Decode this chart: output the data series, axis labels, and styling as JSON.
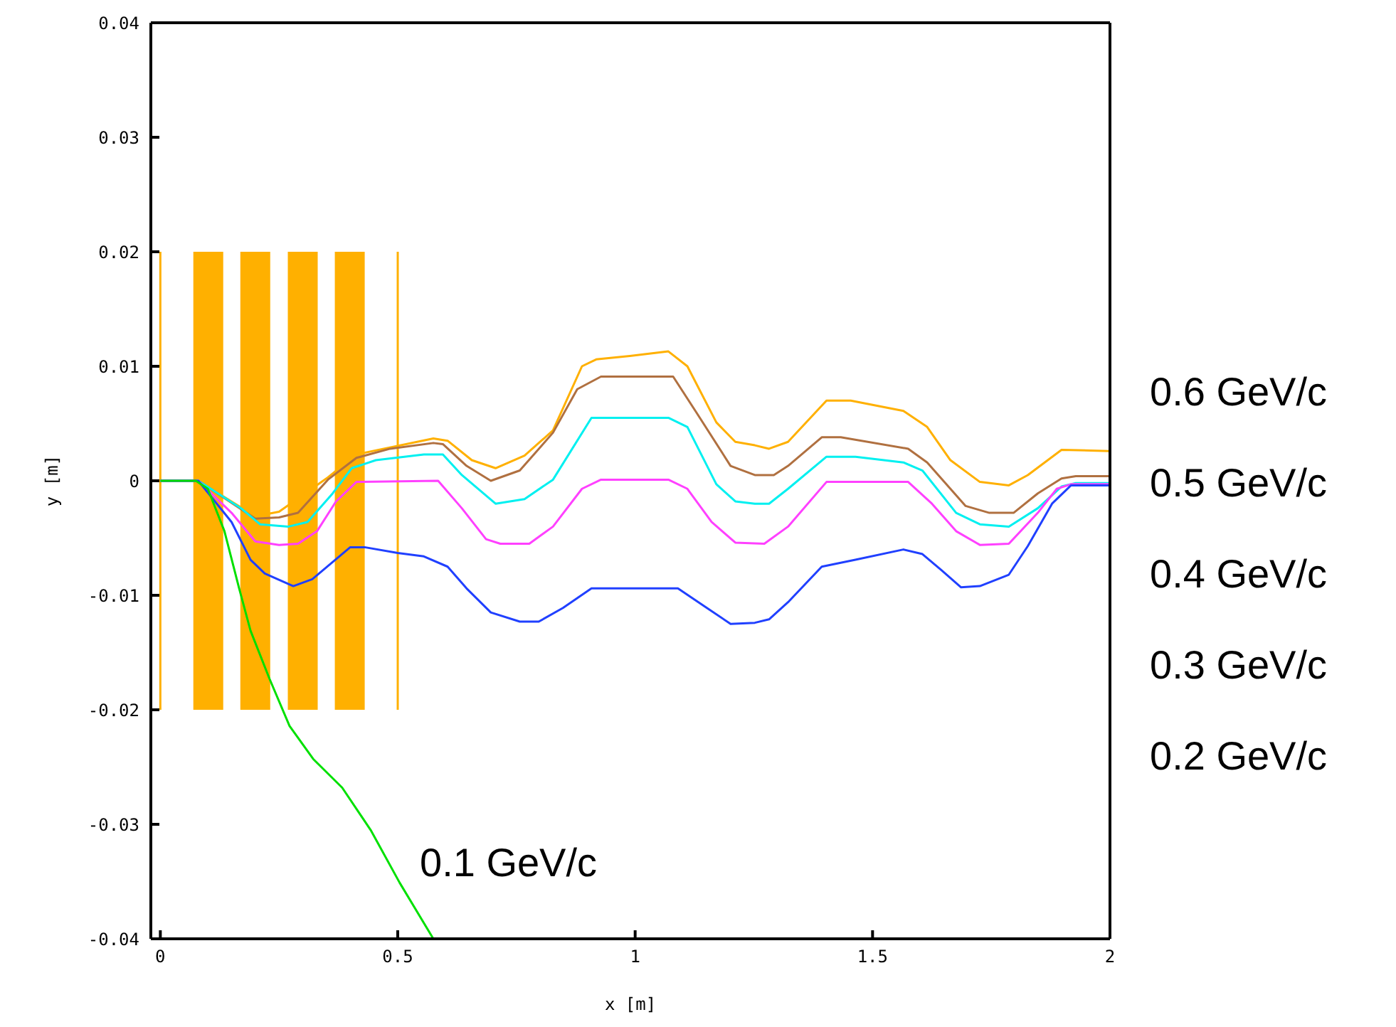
{
  "chart_data": {
    "type": "line",
    "xlabel": "x [m]",
    "ylabel": "y [m]",
    "xlim": [
      -0.02,
      2
    ],
    "xticks": [
      0,
      0.5,
      1,
      1.5,
      2
    ],
    "ylim": [
      -0.04,
      0.04
    ],
    "yticks": [
      -0.04,
      -0.03,
      -0.02,
      -0.01,
      0,
      0.01,
      0.02,
      0.03,
      0.04
    ],
    "grid": false,
    "legend": "right",
    "marker": "none",
    "line_style": "solid",
    "annotations": [
      "0.1 GeV/c"
    ],
    "series": [
      {
        "type": "bar",
        "color": "#ffb000",
        "x": [
          0.101,
          0.2,
          0.3,
          0.399
        ],
        "base": [
          -0.02,
          -0.02,
          -0.02,
          -0.02
        ],
        "values": [
          0.04,
          0.04,
          0.04,
          0.04
        ]
      },
      {
        "type": "line",
        "color": "#ffb000",
        "x": [
          0,
          0
        ],
        "values": [
          -0.02,
          0.02
        ]
      },
      {
        "type": "line",
        "color": "#ffb000",
        "x": [
          0.5,
          0.5
        ],
        "values": [
          -0.02,
          0.02
        ]
      },
      {
        "name": "0.6 GeV/c",
        "color": "#ffb000",
        "x": [
          0,
          0.08,
          0.2,
          0.25,
          0.353,
          0.413,
          0.575,
          0.605,
          0.656,
          0.706,
          0.767,
          0.827,
          0.888,
          0.918,
          0.989,
          1.07,
          1.11,
          1.171,
          1.211,
          1.252,
          1.282,
          1.322,
          1.403,
          1.454,
          1.565,
          1.615,
          1.664,
          1.726,
          1.787,
          1.827,
          1.898,
          2.0
        ],
        "values": [
          0,
          0,
          -0.0031,
          -0.0027,
          0.0003,
          0.0023,
          0.0037,
          0.0035,
          0.0018,
          0.0011,
          0.0022,
          0.0044,
          0.01,
          0.0106,
          0.0109,
          0.0113,
          0.01,
          0.0051,
          0.0034,
          0.0031,
          0.0028,
          0.0034,
          0.007,
          0.007,
          0.0061,
          0.0047,
          0.0018,
          -0.0001,
          -0.0004,
          0.0005,
          0.0027,
          0.0026
        ]
      },
      {
        "name": "0.5 GeV/c",
        "color": "#b07040",
        "x": [
          0,
          0.08,
          0.2,
          0.25,
          0.29,
          0.353,
          0.413,
          0.484,
          0.575,
          0.595,
          0.645,
          0.696,
          0.757,
          0.827,
          0.878,
          0.928,
          1.08,
          1.13,
          1.201,
          1.252,
          1.292,
          1.322,
          1.393,
          1.433,
          1.575,
          1.615,
          1.696,
          1.746,
          1.797,
          1.848,
          1.898,
          1.928,
          2.0
        ],
        "values": [
          0,
          0,
          -0.0033,
          -0.0032,
          -0.0028,
          0.0001,
          0.002,
          0.0028,
          0.0033,
          0.0032,
          0.0013,
          0,
          0.0009,
          0.0042,
          0.008,
          0.0091,
          0.0091,
          0.0059,
          0.0013,
          0.0005,
          0.0005,
          0.0013,
          0.0038,
          0.0038,
          0.0028,
          0.0016,
          -0.0022,
          -0.0028,
          -0.0028,
          -0.0011,
          0.0002,
          0.0004,
          0.0004
        ]
      },
      {
        "name": "0.4 GeV/c",
        "color": "#00f0f0",
        "x": [
          0,
          0.08,
          0.17,
          0.21,
          0.27,
          0.31,
          0.363,
          0.403,
          0.454,
          0.555,
          0.595,
          0.635,
          0.706,
          0.767,
          0.827,
          0.908,
          1.07,
          1.11,
          1.171,
          1.211,
          1.252,
          1.282,
          1.322,
          1.403,
          1.464,
          1.565,
          1.605,
          1.676,
          1.726,
          1.787,
          1.848,
          1.898,
          1.928,
          2.0
        ],
        "values": [
          0,
          0,
          -0.0024,
          -0.0038,
          -0.004,
          -0.0036,
          -0.0011,
          0.0011,
          0.0018,
          0.0023,
          0.0023,
          0.0005,
          -0.002,
          -0.0016,
          0.0001,
          0.0055,
          0.0055,
          0.0047,
          -0.0003,
          -0.0018,
          -0.002,
          -0.002,
          -0.0007,
          0.0021,
          0.0021,
          0.0016,
          0.0009,
          -0.0028,
          -0.0038,
          -0.004,
          -0.0024,
          -0.0005,
          -0.0002,
          -0.0002
        ]
      },
      {
        "name": "0.3 GeV/c",
        "color": "#ff40ff",
        "x": [
          0,
          0.08,
          0.15,
          0.2,
          0.25,
          0.29,
          0.33,
          0.37,
          0.413,
          0.585,
          0.635,
          0.686,
          0.716,
          0.777,
          0.827,
          0.888,
          0.928,
          1.07,
          1.11,
          1.161,
          1.211,
          1.272,
          1.322,
          1.403,
          1.575,
          1.625,
          1.676,
          1.726,
          1.787,
          1.848,
          1.888,
          1.918,
          2.0
        ],
        "values": [
          0,
          0,
          -0.0028,
          -0.0053,
          -0.0056,
          -0.0055,
          -0.0044,
          -0.0018,
          -0.0001,
          0,
          -0.0024,
          -0.0051,
          -0.0055,
          -0.0055,
          -0.004,
          -0.0007,
          0.0001,
          0.0001,
          -0.0007,
          -0.0036,
          -0.0054,
          -0.0055,
          -0.004,
          -0.0001,
          -0.0001,
          -0.002,
          -0.0044,
          -0.0056,
          -0.0055,
          -0.0028,
          -0.0007,
          -0.0003,
          -0.0003
        ]
      },
      {
        "name": "0.2 GeV/c",
        "color": "#2040ff",
        "x": [
          0,
          0.08,
          0.15,
          0.19,
          0.22,
          0.28,
          0.32,
          0.4,
          0.43,
          0.5,
          0.555,
          0.605,
          0.645,
          0.696,
          0.757,
          0.797,
          0.848,
          0.908,
          1.09,
          1.151,
          1.201,
          1.252,
          1.282,
          1.322,
          1.393,
          1.464,
          1.565,
          1.605,
          1.645,
          1.686,
          1.726,
          1.787,
          1.827,
          1.878,
          1.918,
          2.0
        ],
        "values": [
          0,
          0,
          -0.0036,
          -0.0069,
          -0.0081,
          -0.0092,
          -0.0086,
          -0.0058,
          -0.0058,
          -0.0063,
          -0.0066,
          -0.0075,
          -0.0094,
          -0.0115,
          -0.0123,
          -0.0123,
          -0.0111,
          -0.0094,
          -0.0094,
          -0.0111,
          -0.0125,
          -0.0124,
          -0.0121,
          -0.0106,
          -0.0075,
          -0.0069,
          -0.006,
          -0.0064,
          -0.0078,
          -0.0093,
          -0.0092,
          -0.0082,
          -0.0057,
          -0.002,
          -0.0004,
          -0.0004
        ]
      },
      {
        "color": "#00e000",
        "x": [
          0,
          0.075,
          0.1,
          0.135,
          0.166,
          0.19,
          0.23,
          0.272,
          0.322,
          0.383,
          0.443,
          0.504,
          0.575
        ],
        "values": [
          0,
          0,
          -0.0007,
          -0.0044,
          -0.0094,
          -0.0131,
          -0.0173,
          -0.0214,
          -0.0243,
          -0.0268,
          -0.0305,
          -0.0351,
          -0.04
        ]
      }
    ]
  }
}
